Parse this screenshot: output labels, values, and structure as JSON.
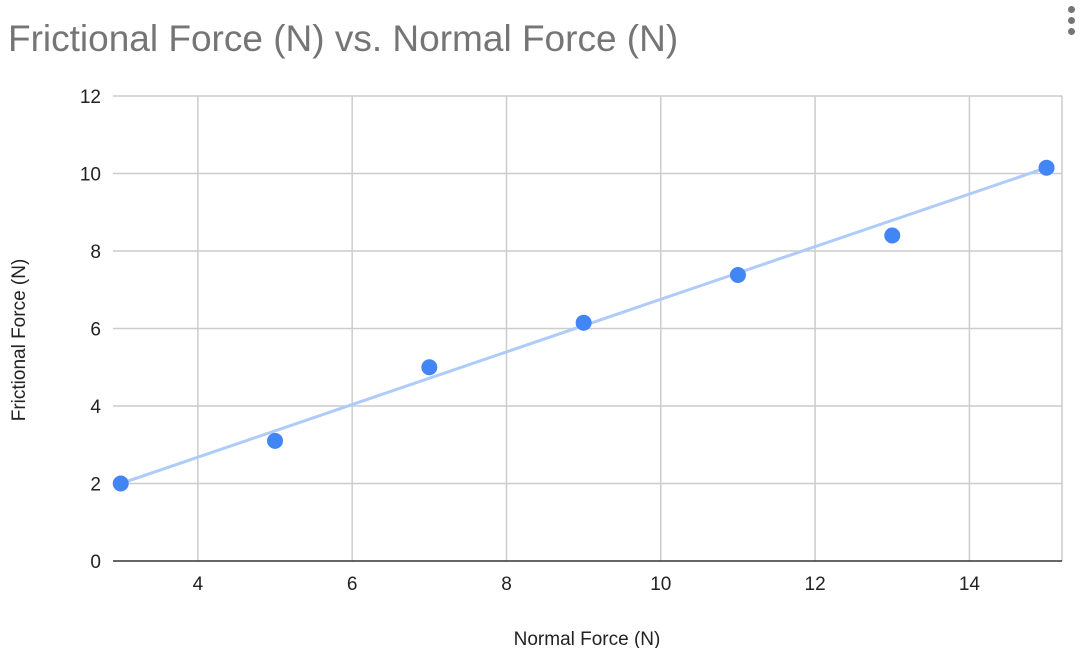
{
  "chart_data": {
    "type": "scatter",
    "title": "Frictional Force (N) vs. Normal Force (N)",
    "xlabel": "Normal Force (N)",
    "ylabel": "Frictional Force (N)",
    "xlim": [
      2.9,
      15.2
    ],
    "ylim": [
      0,
      12
    ],
    "xticks": [
      4,
      6,
      8,
      10,
      12,
      14
    ],
    "yticks": [
      0,
      2,
      4,
      6,
      8,
      10,
      12
    ],
    "grid": true,
    "legend": "none",
    "series": [
      {
        "x": [
          3,
          5,
          7,
          9,
          11,
          13,
          15
        ],
        "y": [
          2.0,
          3.1,
          5.0,
          6.15,
          7.38,
          8.4,
          10.15
        ],
        "color": "#4285f4"
      }
    ],
    "trendline": {
      "type": "linear",
      "x": [
        3,
        15
      ],
      "y": [
        2.0,
        10.15
      ],
      "color": "#aecbfa"
    }
  },
  "colors": {
    "grid": "#cccccc",
    "axis": "#333333",
    "title": "#757575"
  },
  "menu_icon": "more-vert-icon"
}
